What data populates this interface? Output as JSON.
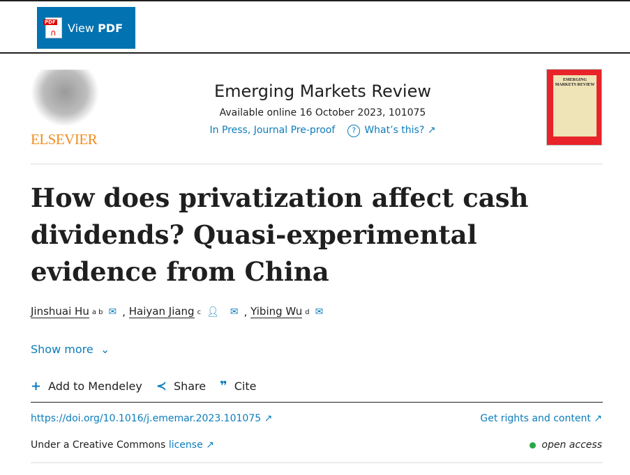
{
  "toolbar": {
    "view_label": "View",
    "pdf_label": "PDF",
    "pdf_icon_text": "PDF"
  },
  "publisher": {
    "logo_text": "ELSEVIER"
  },
  "journal": {
    "title": "Emerging Markets Review",
    "available": "Available online 16 October 2023, 101075",
    "status": "In Press, Journal Pre-proof",
    "whats_this": "What’s this?",
    "cover_text": "EMERGING MARKETS REVIEW"
  },
  "article": {
    "title": "How does privatization affect cash dividends? Quasi-experimental evidence from China",
    "authors": [
      {
        "name": "Jinshuai Hu",
        "sup": "a b"
      },
      {
        "name": "Haiyan Jiang",
        "sup": "c"
      },
      {
        "name": "Yibing Wu",
        "sup": "d"
      }
    ],
    "show_more": "Show more"
  },
  "actions": {
    "mendeley": "Add to Mendeley",
    "share": "Share",
    "cite": "Cite"
  },
  "meta": {
    "doi": "https://doi.org/10.1016/j.ememar.2023.101075",
    "rights": "Get rights and content",
    "cc_prefix": "Under a Creative Commons",
    "cc_link": "license",
    "open_access": "open access"
  },
  "colors": {
    "link": "#0c7dbb",
    "button": "#0272b1",
    "elsevier": "#f28c1e",
    "open_access": "#29a847"
  }
}
